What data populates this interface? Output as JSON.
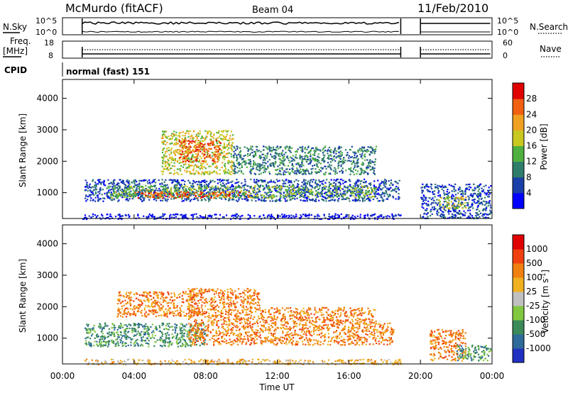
{
  "header": {
    "station": "McMurdo (fitACF)",
    "beam": "Beam 04",
    "date": "11/Feb/2010"
  },
  "panels": {
    "nsky_label": "N.Sky",
    "nsky_ticks": [
      "10^5",
      "10^0"
    ],
    "nsearch_label": "N.Search",
    "nsearch_ticks": [
      "10^5",
      "10^0"
    ],
    "freq_label_line1": "Freq.",
    "freq_label_line2": "[MHz]",
    "freq_ticks": [
      "18",
      "8"
    ],
    "nave_label": "Nave",
    "nave_ticks": [
      "60",
      "0"
    ],
    "cpid_label": "CPID",
    "cpid_value": "normal (fast) 151"
  },
  "chart_data": [
    {
      "type": "heatmap",
      "name": "power",
      "ylabel": "Slant Range [km]",
      "ylim": [
        180,
        4600
      ],
      "yticks": [
        "1000",
        "2000",
        "3000",
        "4000"
      ],
      "ytick_values": [
        1000,
        2000,
        3000,
        4000
      ],
      "x_range_hours": [
        0,
        24
      ],
      "colorbar_label": "Power [dB]",
      "colorbar_ticks": [
        "4",
        "8",
        "12",
        "16",
        "20",
        "24",
        "28"
      ],
      "colorbar_colors": [
        "#0000ff",
        "#1a3fa8",
        "#2e7d6a",
        "#4fb040",
        "#c8c820",
        "#f0a020",
        "#f06010",
        "#e00000"
      ],
      "blobs": [
        {
          "t0": 1.1,
          "t1": 18.9,
          "r0": 180,
          "r1": 350,
          "level": 0
        },
        {
          "t0": 1.2,
          "t1": 18.8,
          "r0": 750,
          "r1": 1450,
          "level": 1
        },
        {
          "t0": 2.5,
          "t1": 17.5,
          "r0": 850,
          "r1": 1250,
          "level": 3
        },
        {
          "t0": 4.0,
          "t1": 10.5,
          "r0": 850,
          "r1": 1050,
          "level": 6
        },
        {
          "t0": 5.5,
          "t1": 9.5,
          "r0": 1600,
          "r1": 3000,
          "level": 4
        },
        {
          "t0": 6.5,
          "t1": 8.8,
          "r0": 2000,
          "r1": 2700,
          "level": 6
        },
        {
          "t0": 9.5,
          "t1": 17.5,
          "r0": 1600,
          "r1": 2500,
          "level": 2
        },
        {
          "t0": 20.0,
          "t1": 23.9,
          "r0": 200,
          "r1": 1300,
          "level": 1
        },
        {
          "t0": 21.0,
          "t1": 22.5,
          "r0": 500,
          "r1": 900,
          "level": 4
        }
      ]
    },
    {
      "type": "heatmap",
      "name": "velocity",
      "ylabel": "Slant Range [km]",
      "ylim": [
        180,
        4600
      ],
      "yticks": [
        "1000",
        "2000",
        "3000",
        "4000"
      ],
      "ytick_values": [
        1000,
        2000,
        3000,
        4000
      ],
      "xlabel": "Time UT",
      "xticks": [
        "00:00",
        "04:00",
        "08:00",
        "12:00",
        "16:00",
        "20:00",
        "00:00"
      ],
      "xtick_hours": [
        0,
        4,
        8,
        12,
        16,
        20,
        24
      ],
      "colorbar_label": "Velocity [m s^-1]",
      "colorbar_ticks": [
        "1000",
        "500",
        "100",
        "25",
        "-25",
        "-100",
        "-500",
        "-1000"
      ],
      "colorbar_colors": [
        "#2030c0",
        "#2e6a9a",
        "#3a8a5a",
        "#80c840",
        "#c0c0c0",
        "#f0b020",
        "#f08010",
        "#f04010",
        "#e00000"
      ],
      "blobs": [
        {
          "t0": 1.2,
          "t1": 8.0,
          "r0": 750,
          "r1": 1500,
          "level": 2
        },
        {
          "t0": 3.0,
          "t1": 7.5,
          "r0": 1700,
          "r1": 2500,
          "level": 6
        },
        {
          "t0": 7.0,
          "t1": 18.5,
          "r0": 800,
          "r1": 1500,
          "level": 6
        },
        {
          "t0": 7.0,
          "t1": 11.0,
          "r0": 1500,
          "r1": 2600,
          "level": 6
        },
        {
          "t0": 11.0,
          "t1": 17.5,
          "r0": 1500,
          "r1": 2000,
          "level": 6
        },
        {
          "t0": 1.1,
          "t1": 18.9,
          "r0": 180,
          "r1": 350,
          "level": 5
        },
        {
          "t0": 20.5,
          "t1": 22.5,
          "r0": 300,
          "r1": 1300,
          "level": 6
        },
        {
          "t0": 22.0,
          "t1": 23.9,
          "r0": 300,
          "r1": 800,
          "level": 2
        }
      ]
    }
  ]
}
